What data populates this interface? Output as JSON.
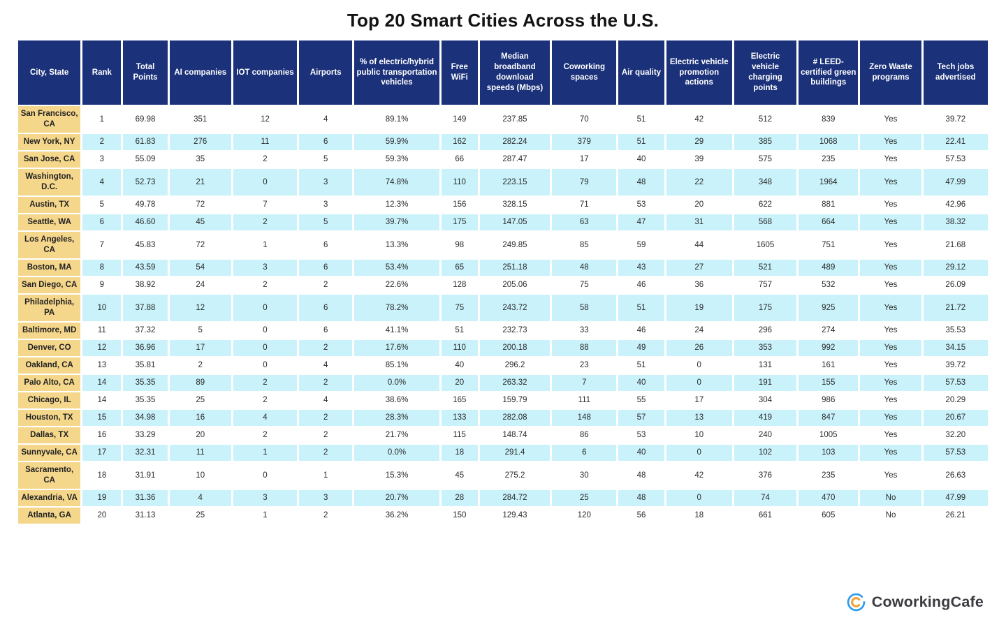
{
  "chart_data": {
    "type": "table",
    "title": "Top 20 Smart Cities Across the U.S.",
    "columns": [
      "City, State",
      "Rank",
      "Total Points",
      "AI companies",
      "IOT companies",
      "Airports",
      "% of electric/hybrid public transportation vehicles",
      "Free WiFi",
      "Median broadband download speeds (Mbps)",
      "Coworking spaces",
      "Air quality",
      "Electric vehicle promotion actions",
      "Electric vehicle charging points",
      "# LEED-certified green buildings",
      "Zero Waste programs",
      "Tech jobs advertised"
    ],
    "rows": [
      [
        "San Francisco, CA",
        "1",
        "69.98",
        "351",
        "12",
        "4",
        "89.1%",
        "149",
        "237.85",
        "70",
        "51",
        "42",
        "512",
        "839",
        "Yes",
        "39.72"
      ],
      [
        "New York, NY",
        "2",
        "61.83",
        "276",
        "11",
        "6",
        "59.9%",
        "162",
        "282.24",
        "379",
        "51",
        "29",
        "385",
        "1068",
        "Yes",
        "22.41"
      ],
      [
        "San Jose, CA",
        "3",
        "55.09",
        "35",
        "2",
        "5",
        "59.3%",
        "66",
        "287.47",
        "17",
        "40",
        "39",
        "575",
        "235",
        "Yes",
        "57.53"
      ],
      [
        "Washington, D.C.",
        "4",
        "52.73",
        "21",
        "0",
        "3",
        "74.8%",
        "110",
        "223.15",
        "79",
        "48",
        "22",
        "348",
        "1964",
        "Yes",
        "47.99"
      ],
      [
        "Austin, TX",
        "5",
        "49.78",
        "72",
        "7",
        "3",
        "12.3%",
        "156",
        "328.15",
        "71",
        "53",
        "20",
        "622",
        "881",
        "Yes",
        "42.96"
      ],
      [
        "Seattle, WA",
        "6",
        "46.60",
        "45",
        "2",
        "5",
        "39.7%",
        "175",
        "147.05",
        "63",
        "47",
        "31",
        "568",
        "664",
        "Yes",
        "38.32"
      ],
      [
        "Los Angeles, CA",
        "7",
        "45.83",
        "72",
        "1",
        "6",
        "13.3%",
        "98",
        "249.85",
        "85",
        "59",
        "44",
        "1605",
        "751",
        "Yes",
        "21.68"
      ],
      [
        "Boston, MA",
        "8",
        "43.59",
        "54",
        "3",
        "6",
        "53.4%",
        "65",
        "251.18",
        "48",
        "43",
        "27",
        "521",
        "489",
        "Yes",
        "29.12"
      ],
      [
        "San Diego, CA",
        "9",
        "38.92",
        "24",
        "2",
        "2",
        "22.6%",
        "128",
        "205.06",
        "75",
        "46",
        "36",
        "757",
        "532",
        "Yes",
        "26.09"
      ],
      [
        "Philadelphia, PA",
        "10",
        "37.88",
        "12",
        "0",
        "6",
        "78.2%",
        "75",
        "243.72",
        "58",
        "51",
        "19",
        "175",
        "925",
        "Yes",
        "21.72"
      ],
      [
        "Baltimore, MD",
        "11",
        "37.32",
        "5",
        "0",
        "6",
        "41.1%",
        "51",
        "232.73",
        "33",
        "46",
        "24",
        "296",
        "274",
        "Yes",
        "35.53"
      ],
      [
        "Denver, CO",
        "12",
        "36.96",
        "17",
        "0",
        "2",
        "17.6%",
        "110",
        "200.18",
        "88",
        "49",
        "26",
        "353",
        "992",
        "Yes",
        "34.15"
      ],
      [
        "Oakland, CA",
        "13",
        "35.81",
        "2",
        "0",
        "4",
        "85.1%",
        "40",
        "296.2",
        "23",
        "51",
        "0",
        "131",
        "161",
        "Yes",
        "39.72"
      ],
      [
        "Palo Alto, CA",
        "14",
        "35.35",
        "89",
        "2",
        "2",
        "0.0%",
        "20",
        "263.32",
        "7",
        "40",
        "0",
        "191",
        "155",
        "Yes",
        "57.53"
      ],
      [
        "Chicago, IL",
        "14",
        "35.35",
        "25",
        "2",
        "4",
        "38.6%",
        "165",
        "159.79",
        "111",
        "55",
        "17",
        "304",
        "986",
        "Yes",
        "20.29"
      ],
      [
        "Houston, TX",
        "15",
        "34.98",
        "16",
        "4",
        "2",
        "28.3%",
        "133",
        "282.08",
        "148",
        "57",
        "13",
        "419",
        "847",
        "Yes",
        "20.67"
      ],
      [
        "Dallas, TX",
        "16",
        "33.29",
        "20",
        "2",
        "2",
        "21.7%",
        "115",
        "148.74",
        "86",
        "53",
        "10",
        "240",
        "1005",
        "Yes",
        "32.20"
      ],
      [
        "Sunnyvale, CA",
        "17",
        "32.31",
        "11",
        "1",
        "2",
        "0.0%",
        "18",
        "291.4",
        "6",
        "40",
        "0",
        "102",
        "103",
        "Yes",
        "57.53"
      ],
      [
        "Sacramento, CA",
        "18",
        "31.91",
        "10",
        "0",
        "1",
        "15.3%",
        "45",
        "275.2",
        "30",
        "48",
        "42",
        "376",
        "235",
        "Yes",
        "26.63"
      ],
      [
        "Alexandria, VA",
        "19",
        "31.36",
        "4",
        "3",
        "3",
        "20.7%",
        "28",
        "284.72",
        "25",
        "48",
        "0",
        "74",
        "470",
        "No",
        "47.99"
      ],
      [
        "Atlanta, GA",
        "20",
        "31.13",
        "25",
        "1",
        "2",
        "36.2%",
        "150",
        "129.43",
        "120",
        "56",
        "18",
        "661",
        "605",
        "No",
        "26.21"
      ]
    ],
    "layout_hints": {
      "row_striping": "white / light-cyan alternating",
      "first_column_highlight": "tan",
      "grid": "white gaps between cells"
    }
  },
  "logo": {
    "text": "CoworkingCafe",
    "icon": "coworkingcafe-ring-icon"
  },
  "colors": {
    "header_bg": "#1b3179",
    "header_text": "#ffffff",
    "row_alt_bg": "#c9f2fa",
    "city_col_bg": "#f5d78c",
    "title_color": "#131313",
    "body_text": "#2b2b2b",
    "logo_blue": "#2e9ce9",
    "logo_orange": "#f0a43b"
  }
}
